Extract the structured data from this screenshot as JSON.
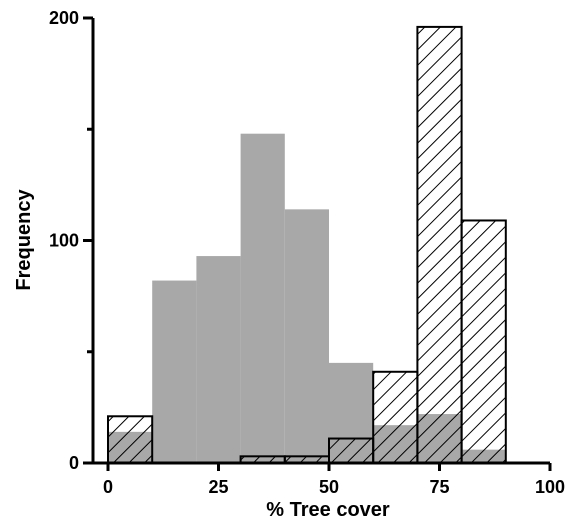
{
  "chart_data": {
    "type": "bar",
    "xlabel": "% Tree cover",
    "ylabel": "Frequency",
    "xlim": [
      0,
      100
    ],
    "ylim": [
      0,
      200
    ],
    "xticks": [
      0,
      25,
      50,
      75,
      100
    ],
    "xtick_labels": [
      "0",
      "25",
      "50",
      "75",
      "100"
    ],
    "yticks": [
      0,
      100,
      200
    ],
    "ytick_labels": [
      "0",
      "100",
      "200"
    ],
    "bin_width": 10,
    "bin_starts": [
      0,
      10,
      20,
      30,
      40,
      50,
      60,
      70,
      80
    ],
    "series": [
      {
        "style": "solid gray",
        "color": "#a8a8a8",
        "values": [
          14,
          82,
          93,
          148,
          114,
          45,
          17,
          22,
          6
        ]
      },
      {
        "style": "diagonal hatched outline",
        "color": "#000000",
        "values": [
          21,
          0,
          0,
          3,
          3,
          11,
          41,
          196,
          109
        ]
      }
    ]
  }
}
